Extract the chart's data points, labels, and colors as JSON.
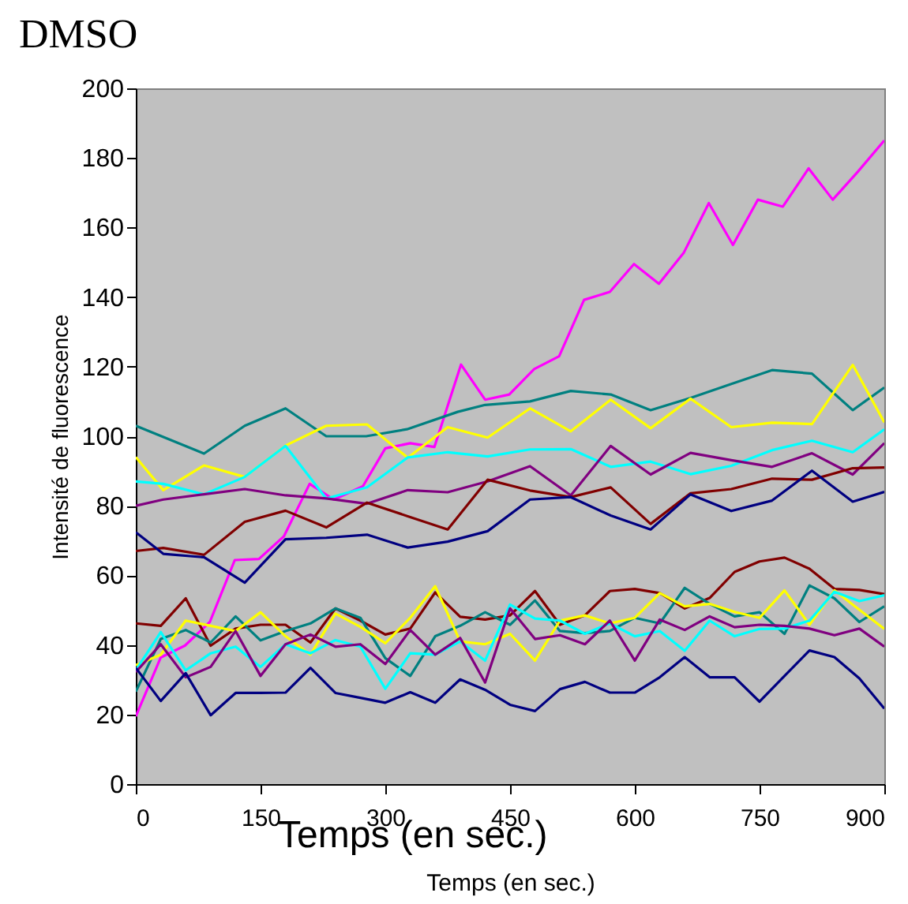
{
  "chart_data": {
    "type": "line",
    "title": "DMSO",
    "xlabel": "Temps (en sec.)",
    "ylabel": "Intensité de fluorescence",
    "annotations": [
      "Temps (en sec.)"
    ],
    "xlim": [
      0,
      900
    ],
    "xticks": [
      0,
      150,
      300,
      450,
      600,
      750,
      900
    ],
    "ylim": [
      0,
      200
    ],
    "yticks": [
      0,
      20,
      40,
      60,
      80,
      100,
      120,
      140,
      160,
      180,
      200
    ],
    "grid": false,
    "legend": false,
    "marker": "none",
    "line_style": "solid",
    "series": [
      {
        "color": "#ff00ff",
        "x": [
          0,
          30,
          59,
          89,
          119,
          148,
          178,
          209,
          238,
          273,
          300,
          330,
          359,
          391,
          420,
          449,
          479,
          509,
          539,
          570,
          599,
          629,
          659,
          689,
          718,
          748,
          778,
          809,
          838,
          868,
          900
        ],
        "values": [
          19.5,
          36.4,
          39.8,
          46.6,
          64.4,
          64.7,
          71.2,
          86.3,
          81.8,
          85.6,
          96.5,
          98,
          96.9,
          120.6,
          110.5,
          112,
          119.3,
          123,
          139.2,
          141.5,
          149.5,
          143.8,
          152.8,
          167,
          155,
          168,
          166,
          177,
          168,
          176,
          185
        ]
      },
      {
        "color": "#008080",
        "x": [
          0,
          82,
          131,
          180,
          229,
          277,
          326,
          387,
          420,
          474,
          523,
          571,
          619,
          667,
          716,
          765,
          813,
          862,
          900
        ],
        "values": [
          103,
          95,
          103,
          108,
          100,
          100,
          102,
          107,
          109,
          110,
          113,
          112,
          107.5,
          111,
          115,
          119,
          118,
          107.5,
          114
        ]
      },
      {
        "color": "#ffff00",
        "x": [
          0,
          33,
          82,
          131,
          180,
          229,
          278,
          327,
          375,
          423,
          474,
          523,
          571,
          619,
          667,
          716,
          765,
          813,
          862,
          900
        ],
        "values": [
          94,
          84.5,
          91.6,
          88.3,
          97.3,
          103,
          103.4,
          93.8,
          102.6,
          99.6,
          108,
          101.4,
          110.5,
          102.3,
          110.8,
          102.6,
          103.9,
          103.5,
          120.5,
          104
        ]
      },
      {
        "color": "#00ffff",
        "x": [
          0,
          33,
          82,
          131,
          180,
          229,
          278,
          327,
          375,
          423,
          474,
          523,
          571,
          619,
          667,
          716,
          765,
          813,
          862,
          900
        ],
        "values": [
          87,
          86.3,
          83.3,
          88.3,
          97.2,
          82.1,
          85.3,
          93.9,
          95.4,
          94.2,
          96.2,
          96.3,
          91.2,
          92.7,
          89.1,
          91.5,
          96,
          98.7,
          95.4,
          102
        ]
      },
      {
        "color": "#800080",
        "x": [
          0,
          33,
          82,
          131,
          180,
          229,
          278,
          327,
          375,
          423,
          474,
          523,
          571,
          619,
          667,
          716,
          765,
          813,
          862,
          900
        ],
        "values": [
          80,
          81.8,
          83.3,
          84.8,
          83,
          82.1,
          80.6,
          84.5,
          83.9,
          87,
          91.4,
          83,
          97.2,
          89,
          95.2,
          93.1,
          91.2,
          95.1,
          89,
          98
        ]
      },
      {
        "color": "#800000",
        "x": [
          0,
          33,
          82,
          131,
          180,
          229,
          278,
          327,
          375,
          423,
          474,
          523,
          571,
          619,
          667,
          716,
          765,
          813,
          862,
          900
        ],
        "values": [
          67,
          67.9,
          65.9,
          75.4,
          78.6,
          73.8,
          80.9,
          77,
          73.2,
          87.5,
          84.4,
          82.5,
          85.3,
          74.8,
          83.6,
          84.8,
          87.8,
          87.5,
          90.8,
          91
        ]
      },
      {
        "color": "#000080",
        "x": [
          0,
          33,
          82,
          131,
          180,
          229,
          278,
          327,
          375,
          423,
          474,
          523,
          571,
          619,
          667,
          716,
          765,
          813,
          862,
          900
        ],
        "values": [
          72.4,
          66.2,
          65.2,
          57.9,
          70.4,
          70.8,
          71.7,
          68,
          69.7,
          72.7,
          81.8,
          82.5,
          77.2,
          73.2,
          83.3,
          78.5,
          81.5,
          90.1,
          81.2,
          84
        ]
      },
      {
        "color": "#800000",
        "x": [
          0,
          30,
          60,
          90,
          120,
          150,
          180,
          210,
          240,
          270,
          300,
          330,
          360,
          390,
          420,
          450,
          480,
          510,
          540,
          570,
          600,
          630,
          660,
          690,
          720,
          750,
          780,
          810,
          840,
          870,
          900
        ],
        "values": [
          46.2,
          45.5,
          53.4,
          39.8,
          44.7,
          45.8,
          45.8,
          40.7,
          50.5,
          47,
          43,
          44.7,
          55.1,
          48.1,
          47.3,
          48.5,
          55.5,
          45.8,
          48.5,
          55.5,
          56.1,
          54.9,
          50.5,
          53.5,
          61,
          64,
          65.1,
          61.9,
          56.1,
          55.8,
          54.6
        ]
      },
      {
        "color": "#008080",
        "x": [
          0,
          30,
          60,
          90,
          120,
          150,
          180,
          210,
          240,
          270,
          300,
          330,
          360,
          390,
          420,
          450,
          480,
          510,
          540,
          570,
          600,
          630,
          660,
          690,
          720,
          750,
          780,
          810,
          840,
          870,
          900
        ],
        "values": [
          26.6,
          41.7,
          44.3,
          40.7,
          48.2,
          41.3,
          44,
          46.2,
          50.5,
          47.8,
          36.2,
          31.1,
          42.5,
          45.5,
          49.4,
          45.8,
          52.8,
          44,
          43.4,
          44,
          47.8,
          46.2,
          56.4,
          51.8,
          48.2,
          49.4,
          43.2,
          57.1,
          53.4,
          46.6,
          51.1
        ]
      },
      {
        "color": "#ffff00",
        "x": [
          0,
          30,
          60,
          90,
          120,
          150,
          180,
          210,
          240,
          270,
          300,
          330,
          360,
          390,
          420,
          450,
          480,
          510,
          540,
          570,
          600,
          630,
          660,
          690,
          720,
          750,
          780,
          810,
          840,
          870,
          900
        ],
        "values": [
          34.2,
          37.2,
          47,
          45.5,
          44,
          49.4,
          42.5,
          37.2,
          49,
          45.2,
          40.5,
          47.8,
          56.9,
          41,
          40.2,
          43.2,
          35.5,
          47,
          48.5,
          46.2,
          47.8,
          54.9,
          51.1,
          51.8,
          49.5,
          47.8,
          55.7,
          45.8,
          55.7,
          50.1,
          44.6
        ]
      },
      {
        "color": "#00ffff",
        "x": [
          0,
          30,
          60,
          90,
          120,
          150,
          180,
          210,
          240,
          270,
          300,
          330,
          360,
          390,
          420,
          450,
          480,
          510,
          540,
          570,
          600,
          630,
          660,
          690,
          720,
          750,
          780,
          810,
          840,
          870,
          900
        ],
        "values": [
          32.7,
          43.7,
          32.7,
          37.6,
          39.5,
          33.7,
          40.2,
          37.6,
          41.4,
          39.5,
          27.4,
          37.6,
          37.2,
          41,
          35.5,
          51.6,
          47.6,
          47,
          43.2,
          46.2,
          42.5,
          44,
          38.3,
          47,
          42.5,
          44.6,
          44.7,
          47,
          55.3,
          52.6,
          54.3
        ]
      },
      {
        "color": "#800080",
        "x": [
          0,
          30,
          60,
          90,
          120,
          150,
          180,
          210,
          240,
          270,
          300,
          330,
          360,
          390,
          420,
          450,
          480,
          510,
          540,
          570,
          600,
          630,
          660,
          690,
          720,
          750,
          780,
          810,
          840,
          870,
          900
        ],
        "values": [
          32.2,
          40.2,
          30.7,
          33.7,
          44,
          31.1,
          40.2,
          43,
          39.5,
          40.2,
          34.5,
          44.3,
          37.2,
          42,
          29.2,
          50.5,
          41.7,
          42.8,
          40.2,
          47,
          35.5,
          47.3,
          44.3,
          48.2,
          45.1,
          45.8,
          45.5,
          44.7,
          42.8,
          44.7,
          39.5
        ]
      },
      {
        "color": "#000080",
        "x": [
          0,
          30,
          60,
          90,
          120,
          150,
          180,
          210,
          240,
          270,
          300,
          330,
          360,
          390,
          420,
          450,
          480,
          510,
          540,
          570,
          600,
          630,
          660,
          690,
          720,
          750,
          780,
          810,
          840,
          870,
          900
        ],
        "values": [
          33.4,
          23.9,
          31.9,
          19.8,
          26.2,
          26.2,
          26.3,
          33.4,
          26.2,
          24.8,
          23.4,
          26.4,
          23.4,
          30.1,
          27.1,
          22.8,
          21,
          27.3,
          29.4,
          26.3,
          26.3,
          30.7,
          36.5,
          30.7,
          30.7,
          23.7,
          31.1,
          38.4,
          36.5,
          30.4,
          21.7
        ]
      }
    ]
  }
}
